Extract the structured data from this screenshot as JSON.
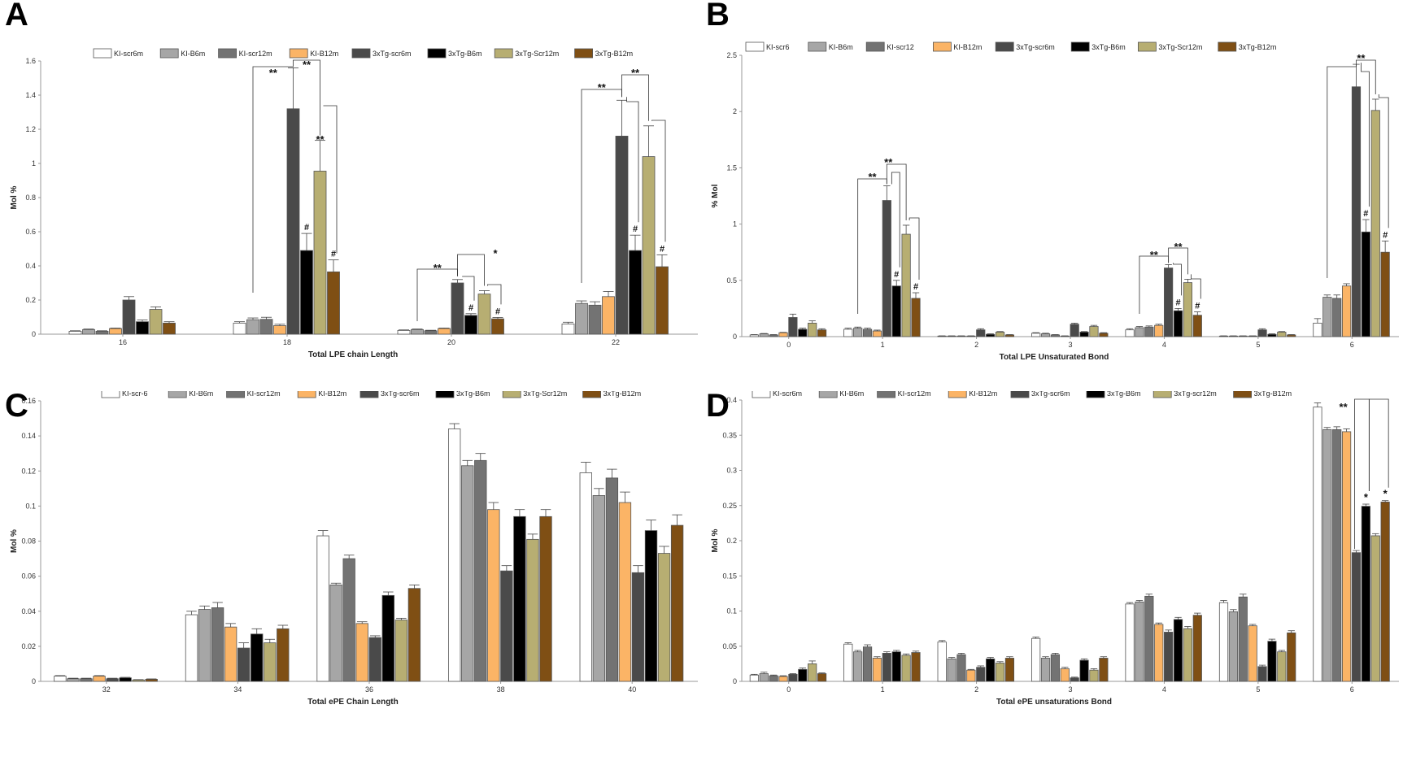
{
  "colors": {
    "KI-scr6m": "#ffffff",
    "KI-B6m": "#a6a6a6",
    "KI-scr12m": "#737373",
    "KI-B12m": "#fbb466",
    "3xTg-scr6m": "#4a4a4a",
    "3xTg-B6m": "#000000",
    "3xTg-Scr12m": "#b7ae72",
    "3xTg-B12m": "#7f4f14"
  },
  "chart_data": [
    {
      "panel": "A",
      "type": "bar",
      "xlabel": "Total LPE chain Length",
      "ylabel": "Mol %",
      "ylim": [
        0,
        1.6
      ],
      "yticks": [
        "0",
        "0.2",
        "0.4",
        "0.6",
        "0.8",
        "1",
        "1.2",
        "1.4",
        "1.6"
      ],
      "legend": [
        "KI-scr6m",
        "KI-B6m",
        "KI-scr12m",
        "KI-B12m",
        "3xTg-scr6m",
        "3xTg-B6m",
        "3xTg-Scr12m",
        "3xTg-B12m"
      ],
      "categories": [
        "16",
        "18",
        "20",
        "22"
      ],
      "series": [
        {
          "name": "KI-scr6m",
          "values": [
            0.017,
            0.065,
            0.022,
            0.06
          ],
          "err": [
            0.003,
            0.008,
            0.003,
            0.01
          ]
        },
        {
          "name": "KI-B6m",
          "values": [
            0.027,
            0.085,
            0.027,
            0.18
          ],
          "err": [
            0.003,
            0.01,
            0.003,
            0.015
          ]
        },
        {
          "name": "KI-scr12m",
          "values": [
            0.017,
            0.087,
            0.02,
            0.17
          ],
          "err": [
            0.003,
            0.012,
            0.003,
            0.02
          ]
        },
        {
          "name": "KI-B12m",
          "values": [
            0.033,
            0.05,
            0.033,
            0.22
          ],
          "err": [
            0.003,
            0.008,
            0.003,
            0.03
          ]
        },
        {
          "name": "3xTg-scr6m",
          "values": [
            0.2,
            1.32,
            0.3,
            1.16
          ],
          "err": [
            0.02,
            0.24,
            0.02,
            0.21
          ]
        },
        {
          "name": "3xTg-B6m",
          "values": [
            0.073,
            0.49,
            0.11,
            0.49
          ],
          "err": [
            0.01,
            0.1,
            0.01,
            0.09
          ]
        },
        {
          "name": "3xTg-Scr12m",
          "values": [
            0.145,
            0.955,
            0.235,
            1.04
          ],
          "err": [
            0.015,
            0.18,
            0.02,
            0.18
          ]
        },
        {
          "name": "3xTg-B12m",
          "values": [
            0.065,
            0.365,
            0.09,
            0.395
          ],
          "err": [
            0.008,
            0.07,
            0.008,
            0.07
          ]
        }
      ],
      "annotations": {
        "double_star": "**",
        "single_star": "*",
        "hash": "#"
      }
    },
    {
      "panel": "B",
      "type": "bar",
      "xlabel": "Total LPE Unsaturated Bond",
      "ylabel": "% Mol",
      "ylim": [
        0,
        2.5
      ],
      "yticks": [
        "0",
        "0.5",
        "1",
        "1.5",
        "2",
        "2.5"
      ],
      "legend": [
        "KI-scr6",
        "KI-B6m",
        "KI-scr12",
        "KI-B12m",
        "3xTg-scr6m",
        "3xTg-B6m",
        "3xTg-Scr12m",
        "3xTg-B12m"
      ],
      "categories": [
        "0",
        "1",
        "2",
        "3",
        "4",
        "5",
        "6"
      ],
      "series": [
        {
          "name": "KI-scr6",
          "values": [
            0.015,
            0.065,
            0.005,
            0.03,
            0.06,
            0.005,
            0.12
          ],
          "err": [
            0.003,
            0.01,
            0.002,
            0.005,
            0.01,
            0.002,
            0.04
          ]
        },
        {
          "name": "KI-B6m",
          "values": [
            0.025,
            0.075,
            0.005,
            0.025,
            0.08,
            0.005,
            0.35
          ],
          "err": [
            0.003,
            0.01,
            0.002,
            0.005,
            0.01,
            0.002,
            0.02
          ]
        },
        {
          "name": "KI-scr12",
          "values": [
            0.015,
            0.065,
            0.005,
            0.015,
            0.085,
            0.005,
            0.34
          ],
          "err": [
            0.003,
            0.01,
            0.002,
            0.003,
            0.01,
            0.002,
            0.03
          ]
        },
        {
          "name": "KI-B12m",
          "values": [
            0.035,
            0.05,
            0.005,
            0.005,
            0.1,
            0.005,
            0.45
          ],
          "err": [
            0.003,
            0.008,
            0.002,
            0.002,
            0.01,
            0.002,
            0.02
          ]
        },
        {
          "name": "3xTg-scr6m",
          "values": [
            0.17,
            1.21,
            0.06,
            0.11,
            0.61,
            0.06,
            2.22
          ],
          "err": [
            0.03,
            0.13,
            0.01,
            0.01,
            0.03,
            0.01,
            0.2
          ]
        },
        {
          "name": "3xTg-B6m",
          "values": [
            0.065,
            0.45,
            0.02,
            0.04,
            0.23,
            0.02,
            0.93
          ],
          "err": [
            0.01,
            0.05,
            0.005,
            0.005,
            0.02,
            0.005,
            0.11
          ]
        },
        {
          "name": "3xTg-Scr12m",
          "values": [
            0.12,
            0.91,
            0.04,
            0.09,
            0.48,
            0.04,
            2.01
          ],
          "err": [
            0.02,
            0.08,
            0.005,
            0.01,
            0.03,
            0.005,
            0.1
          ]
        },
        {
          "name": "3xTg-B12m",
          "values": [
            0.06,
            0.34,
            0.015,
            0.03,
            0.19,
            0.015,
            0.75
          ],
          "err": [
            0.01,
            0.05,
            0.003,
            0.005,
            0.03,
            0.003,
            0.1
          ]
        }
      ],
      "annotations": {
        "double_star": "**",
        "hash": "#"
      }
    },
    {
      "panel": "C",
      "type": "bar",
      "xlabel": "Total ePE Chain Length",
      "ylabel": "Mol %",
      "ylim": [
        0,
        0.16
      ],
      "yticks": [
        "0",
        "0.02",
        "0.04",
        "0.06",
        "0.08",
        "0.1",
        "0.12",
        "0.14",
        "0.16"
      ],
      "legend": [
        "KI-scr-6",
        "KI-B6m",
        "KI-scr12m",
        "KI-B12m",
        "3xTg-scr6m",
        "3xTg-B6m",
        "3xTg-Scr12m",
        "3xTg-B12m"
      ],
      "categories": [
        "32",
        "34",
        "36",
        "38",
        "40"
      ],
      "series": [
        {
          "name": "KI-scr-6",
          "values": [
            0.003,
            0.038,
            0.083,
            0.144,
            0.119
          ],
          "err": [
            0.0003,
            0.002,
            0.003,
            0.003,
            0.006
          ]
        },
        {
          "name": "KI-B6m",
          "values": [
            0.0015,
            0.041,
            0.055,
            0.123,
            0.106
          ],
          "err": [
            0.0003,
            0.002,
            0.001,
            0.003,
            0.004
          ]
        },
        {
          "name": "KI-scr12m",
          "values": [
            0.0015,
            0.042,
            0.07,
            0.126,
            0.116
          ],
          "err": [
            0.0003,
            0.003,
            0.002,
            0.004,
            0.005
          ]
        },
        {
          "name": "KI-B12m",
          "values": [
            0.003,
            0.031,
            0.033,
            0.098,
            0.102
          ],
          "err": [
            0.0003,
            0.002,
            0.001,
            0.004,
            0.006
          ]
        },
        {
          "name": "3xTg-scr6m",
          "values": [
            0.0015,
            0.019,
            0.025,
            0.063,
            0.062
          ],
          "err": [
            0.0003,
            0.003,
            0.001,
            0.003,
            0.004
          ]
        },
        {
          "name": "3xTg-B6m",
          "values": [
            0.002,
            0.027,
            0.049,
            0.094,
            0.086
          ],
          "err": [
            0.0003,
            0.003,
            0.002,
            0.004,
            0.006
          ]
        },
        {
          "name": "3xTg-Scr12m",
          "values": [
            0.0008,
            0.022,
            0.035,
            0.081,
            0.073
          ],
          "err": [
            0.0002,
            0.002,
            0.001,
            0.003,
            0.004
          ]
        },
        {
          "name": "3xTg-B12m",
          "values": [
            0.0012,
            0.03,
            0.053,
            0.094,
            0.089
          ],
          "err": [
            0.0002,
            0.002,
            0.002,
            0.004,
            0.006
          ]
        }
      ]
    },
    {
      "panel": "D",
      "type": "bar",
      "xlabel": "Total ePE unsaturations Bond",
      "ylabel": "Mol %",
      "ylim": [
        0,
        0.4
      ],
      "yticks": [
        "0",
        "0.05",
        "0.1",
        "0.15",
        "0.2",
        "0.25",
        "0.3",
        "0.35",
        "0.4"
      ],
      "legend": [
        "KI-scr6m",
        "KI-B6m",
        "KI-scr12m",
        "KI-B12m",
        "3xTg-scr6m",
        "3xTg-B6m",
        "3xTg-scr12m",
        "3xTg-B12m"
      ],
      "categories": [
        "0",
        "1",
        "2",
        "3",
        "4",
        "5",
        "6"
      ],
      "series": [
        {
          "name": "KI-scr6m",
          "values": [
            0.009,
            0.053,
            0.056,
            0.061,
            0.11,
            0.112,
            0.39
          ],
          "err": [
            0.001,
            0.002,
            0.002,
            0.002,
            0.002,
            0.003,
            0.006
          ]
        },
        {
          "name": "KI-B6m",
          "values": [
            0.011,
            0.042,
            0.032,
            0.033,
            0.113,
            0.099,
            0.358
          ],
          "err": [
            0.002,
            0.002,
            0.002,
            0.002,
            0.002,
            0.003,
            0.003
          ]
        },
        {
          "name": "KI-scr12m",
          "values": [
            0.008,
            0.049,
            0.038,
            0.038,
            0.121,
            0.12,
            0.358
          ],
          "err": [
            0.001,
            0.003,
            0.002,
            0.002,
            0.003,
            0.004,
            0.004
          ]
        },
        {
          "name": "KI-B12m",
          "values": [
            0.007,
            0.033,
            0.016,
            0.018,
            0.081,
            0.079,
            0.355
          ],
          "err": [
            0.001,
            0.002,
            0.001,
            0.002,
            0.002,
            0.002,
            0.004
          ]
        },
        {
          "name": "3xTg-scr6m",
          "values": [
            0.01,
            0.04,
            0.02,
            0.005,
            0.07,
            0.021,
            0.183
          ],
          "err": [
            0.001,
            0.002,
            0.002,
            0.001,
            0.003,
            0.002,
            0.003
          ]
        },
        {
          "name": "3xTg-B6m",
          "values": [
            0.017,
            0.042,
            0.032,
            0.03,
            0.088,
            0.057,
            0.249
          ],
          "err": [
            0.002,
            0.002,
            0.002,
            0.002,
            0.003,
            0.003,
            0.003
          ]
        },
        {
          "name": "3xTg-scr12m",
          "values": [
            0.025,
            0.037,
            0.026,
            0.016,
            0.075,
            0.042,
            0.207
          ],
          "err": [
            0.004,
            0.002,
            0.002,
            0.002,
            0.003,
            0.002,
            0.003
          ]
        },
        {
          "name": "3xTg-B12m",
          "values": [
            0.011,
            0.041,
            0.033,
            0.033,
            0.094,
            0.069,
            0.255
          ],
          "err": [
            0.001,
            0.002,
            0.002,
            0.002,
            0.003,
            0.003,
            0.002
          ]
        }
      ],
      "annotations": {
        "double_star": "**",
        "single_star": "*"
      }
    }
  ]
}
